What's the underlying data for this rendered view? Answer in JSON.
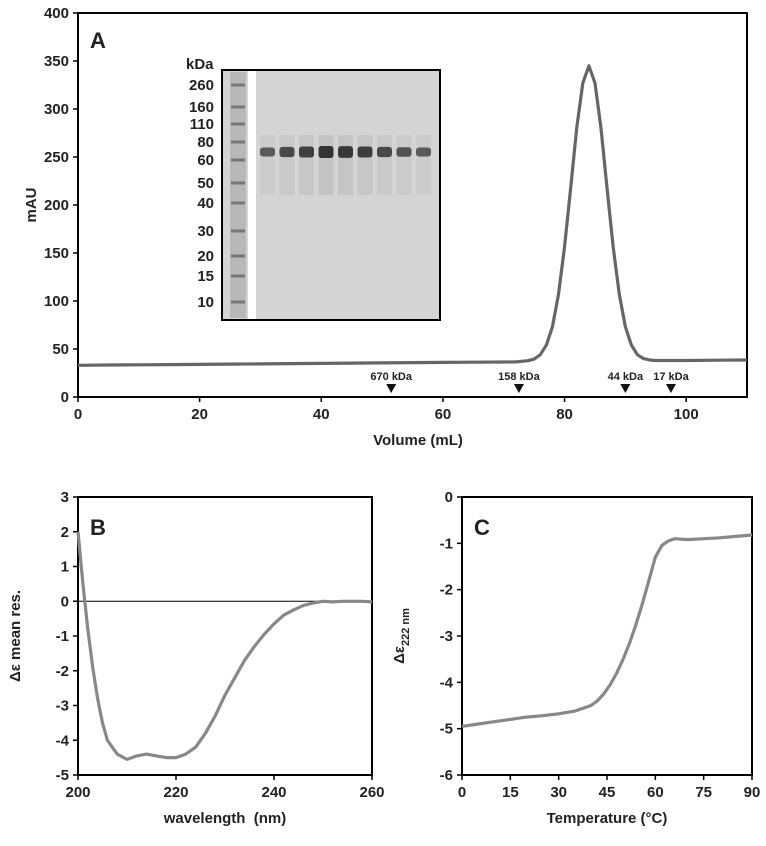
{
  "chart_data": [
    {
      "type": "line",
      "panel": "A",
      "x_label": "Volume (mL)",
      "y_label": "mAU",
      "color": "#666666",
      "x": [
        0,
        5,
        10,
        15,
        20,
        25,
        30,
        35,
        40,
        45,
        50,
        55,
        60,
        65,
        70,
        72,
        74,
        75,
        76,
        77,
        78,
        79,
        80,
        81,
        82,
        83,
        84,
        85,
        86,
        87,
        88,
        89,
        90,
        91,
        92,
        93,
        94,
        95,
        100,
        105,
        110
      ],
      "values": [
        33,
        33.3,
        33.5,
        33.8,
        34,
        34.3,
        34.5,
        34.8,
        35,
        35.3,
        35.5,
        35.8,
        36,
        36.3,
        36.5,
        36.6,
        37.8,
        39.5,
        44,
        54,
        73,
        107,
        156,
        217,
        280,
        327,
        345,
        327,
        280,
        217,
        156,
        107,
        73,
        54,
        44,
        40,
        38.5,
        38,
        38,
        38.3,
        38.5
      ],
      "xlim": [
        0,
        110
      ],
      "xticks": [
        0,
        20,
        40,
        60,
        80,
        100
      ],
      "ylim": [
        0,
        400
      ],
      "yticks": [
        0,
        50,
        100,
        150,
        200,
        250,
        300,
        350,
        400
      ],
      "markers": [
        {
          "label": "670 kDa",
          "x": 51.5
        },
        {
          "label": "158 kDa",
          "x": 72.5
        },
        {
          "label": "44 kDa",
          "x": 90
        },
        {
          "label": "17 kDa",
          "x": 97.5
        }
      ],
      "inset": {
        "title": "kDa",
        "ladder": [
          "260",
          "160",
          "110",
          "80",
          "60",
          "50",
          "40",
          "30",
          "20",
          "15",
          "10"
        ]
      }
    },
    {
      "type": "line",
      "panel": "B",
      "x_label": "wavelength  (nm)",
      "y_label": "Δε mean res.",
      "color": "#888888",
      "zero_line": true,
      "x": [
        200,
        201,
        202,
        203,
        204,
        205,
        206,
        208,
        210,
        212,
        214,
        216,
        218,
        220,
        222,
        224,
        226,
        228,
        230,
        232,
        234,
        236,
        238,
        240,
        242,
        244,
        246,
        248,
        250,
        252,
        254,
        256,
        258,
        260
      ],
      "values": [
        2,
        0.5,
        -0.8,
        -1.9,
        -2.8,
        -3.5,
        -4.0,
        -4.4,
        -4.55,
        -4.45,
        -4.4,
        -4.45,
        -4.5,
        -4.5,
        -4.4,
        -4.2,
        -3.8,
        -3.3,
        -2.7,
        -2.2,
        -1.7,
        -1.3,
        -0.95,
        -0.65,
        -0.4,
        -0.25,
        -0.12,
        -0.05,
        0,
        -0.02,
        0,
        0,
        0,
        -0.02
      ],
      "xlim": [
        200,
        260
      ],
      "xticks": [
        200,
        220,
        240,
        260
      ],
      "ylim": [
        -5,
        3
      ],
      "yticks": [
        -5,
        -4,
        -3,
        -2,
        -1,
        0,
        1,
        2,
        3
      ]
    },
    {
      "type": "line",
      "panel": "C",
      "x_label": "Temperature (°C)",
      "y_label": "Δε",
      "y_label_sub": "222 nm",
      "color": "#888888",
      "x": [
        0,
        5,
        10,
        15,
        20,
        25,
        30,
        35,
        40,
        42,
        44,
        46,
        48,
        50,
        52,
        54,
        56,
        58,
        60,
        62,
        64,
        66,
        70,
        75,
        80,
        85,
        90
      ],
      "values": [
        -4.95,
        -4.9,
        -4.85,
        -4.8,
        -4.75,
        -4.72,
        -4.68,
        -4.62,
        -4.5,
        -4.4,
        -4.25,
        -4.05,
        -3.8,
        -3.5,
        -3.15,
        -2.75,
        -2.3,
        -1.8,
        -1.3,
        -1.05,
        -0.95,
        -0.9,
        -0.92,
        -0.9,
        -0.88,
        -0.85,
        -0.82
      ],
      "xlim": [
        0,
        90
      ],
      "xticks": [
        0,
        15,
        30,
        45,
        60,
        75,
        90
      ],
      "ylim": [
        -6,
        0
      ],
      "yticks": [
        -6,
        -5,
        -4,
        -3,
        -2,
        -1,
        0
      ]
    }
  ]
}
